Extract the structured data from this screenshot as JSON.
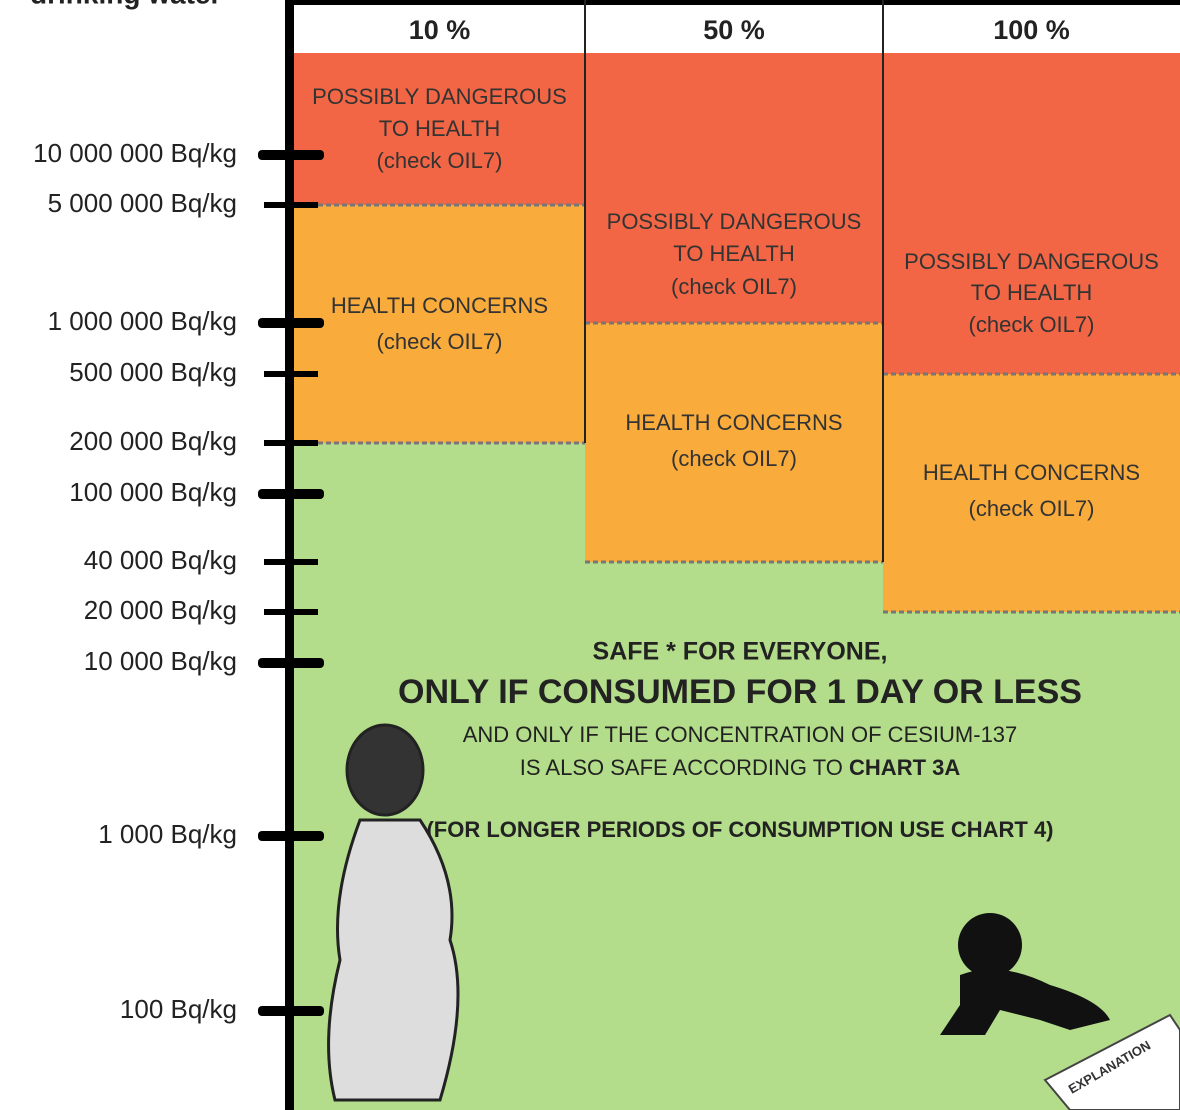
{
  "header": {
    "title": "drinking water"
  },
  "columns": [
    {
      "label": "10 %",
      "zones": [
        {
          "lines": [
            "POSSIBLY DANGEROUS",
            "TO HEALTH",
            "(check OIL7)"
          ]
        },
        {
          "lines": [
            "HEALTH CONCERNS",
            "(check OIL7)"
          ]
        }
      ]
    },
    {
      "label": "50 %",
      "zones": [
        {
          "lines": [
            "POSSIBLY DANGEROUS",
            "TO HEALTH",
            "(check OIL7)"
          ]
        },
        {
          "lines": [
            "HEALTH CONCERNS",
            "(check OIL7)"
          ]
        }
      ]
    },
    {
      "label": "100 %",
      "zones": [
        {
          "lines": [
            "POSSIBLY DANGEROUS",
            "TO HEALTH",
            "(check OIL7)"
          ]
        },
        {
          "lines": [
            "HEALTH CONCERNS",
            "(check OIL7)"
          ]
        }
      ]
    }
  ],
  "axis": {
    "labels": [
      "10 000 000 Bq/kg",
      "5 000 000 Bq/kg",
      "1 000 000 Bq/kg",
      "500 000 Bq/kg",
      "200 000 Bq/kg",
      "100 000 Bq/kg",
      "40 000 Bq/kg",
      "20 000 Bq/kg",
      "10 000 Bq/kg",
      "1 000 Bq/kg",
      "100 Bq/kg"
    ]
  },
  "safe": {
    "line1": "SAFE * FOR EVERYONE,",
    "line2": "ONLY IF CONSUMED FOR 1 DAY OR LESS",
    "line3": "AND ONLY IF THE CONCENTRATION OF CESIUM-137",
    "line4": {
      "text": "IS ALSO SAFE ACCORDING TO",
      "bold": "CHART 3A"
    },
    "line5": "(FOR LONGER PERIODS OF CONSUMPTION USE CHART 4)"
  },
  "explanation": "EXPLANATION"
}
